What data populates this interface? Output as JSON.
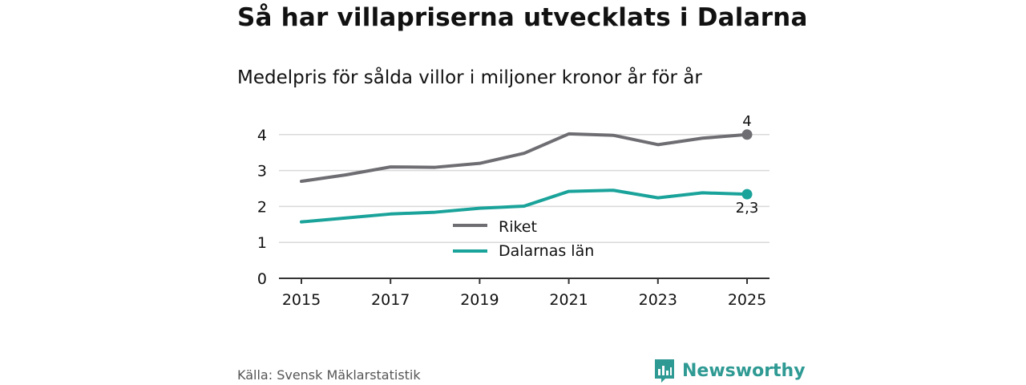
{
  "header": {
    "title": "Så har villapriserna utvecklats i Dalarna",
    "subtitle": "Medelpris för sålda villor i miljoner kronor år för år"
  },
  "footer": {
    "source": "Källa: Svensk Mäklarstatistik",
    "brand": "Newsworthy"
  },
  "colors": {
    "riket": "#6e6d72",
    "dalarna": "#1aa39a",
    "grid": "#d9d9d9",
    "axis": "#333333",
    "brand": "#2e9a93"
  },
  "chart_data": {
    "type": "line",
    "title": "Så har villapriserna utvecklats i Dalarna",
    "subtitle": "Medelpris för sålda villor i miljoner kronor år för år",
    "xlabel": "",
    "ylabel": "",
    "x": [
      2015,
      2016,
      2017,
      2018,
      2019,
      2020,
      2021,
      2022,
      2023,
      2024,
      2025
    ],
    "xticks": [
      "2015",
      "2017",
      "2019",
      "2021",
      "2023",
      "2025"
    ],
    "yticks": [
      "0",
      "1",
      "2",
      "3",
      "4"
    ],
    "ylim": [
      0,
      4.4
    ],
    "xlim": [
      2015,
      2025
    ],
    "grid": true,
    "legend_position": "center",
    "series": [
      {
        "name": "Riket",
        "values": [
          2.7,
          2.88,
          3.1,
          3.09,
          3.2,
          3.48,
          4.02,
          3.98,
          3.72,
          3.9,
          4.0
        ],
        "end_label": "4"
      },
      {
        "name": "Dalarnas län",
        "values": [
          1.57,
          1.68,
          1.79,
          1.84,
          1.95,
          2.01,
          2.42,
          2.45,
          2.24,
          2.38,
          2.34
        ],
        "end_label": "2,3"
      }
    ]
  }
}
